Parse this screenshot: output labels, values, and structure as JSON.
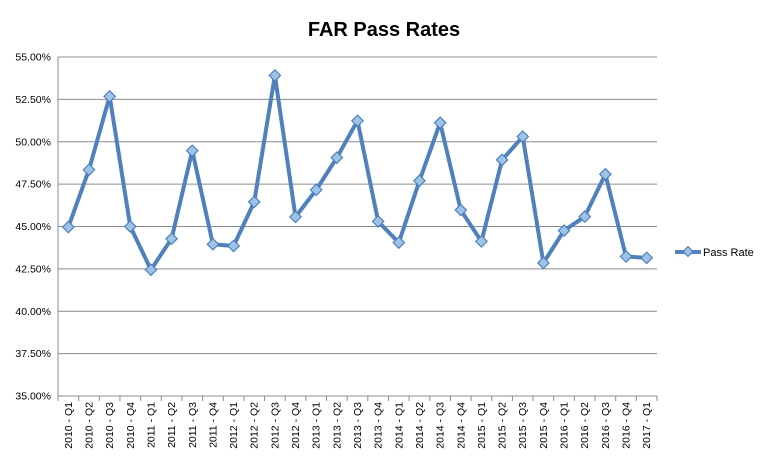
{
  "chart_data": {
    "type": "line",
    "title": "FAR Pass Rates",
    "xlabel": "",
    "ylabel": "",
    "categories": [
      "2010 - Q1",
      "2010 - Q2",
      "2010 - Q3",
      "2010 - Q4",
      "2011 - Q1",
      "2011 - Q2",
      "2011 - Q3",
      "2011 - Q4",
      "2012 - Q1",
      "2012 - Q2",
      "2012 - Q3",
      "2012 - Q4",
      "2013 - Q1",
      "2013 - Q2",
      "2013 - Q3",
      "2013 - Q4",
      "2014 - Q1",
      "2014 - Q2",
      "2014 - Q3",
      "2014 - Q4",
      "2015 - Q1",
      "2015 - Q2",
      "2015 - Q3",
      "2015 - Q4",
      "2016 - Q1",
      "2016 - Q2",
      "2016 - Q3",
      "2016 - Q4",
      "2017 - Q1"
    ],
    "series": [
      {
        "name": "Pass Rate",
        "color": "#4f81bd",
        "values": [
          0.4497,
          0.4835,
          0.5268,
          0.45,
          0.4245,
          0.4428,
          0.4947,
          0.4395,
          0.4385,
          0.4645,
          0.5391,
          0.4557,
          0.4716,
          0.4906,
          0.5124,
          0.453,
          0.4405,
          0.477,
          0.5112,
          0.4597,
          0.4412,
          0.4893,
          0.503,
          0.4285,
          0.4476,
          0.4558,
          0.4808,
          0.4323,
          0.4315
        ]
      }
    ],
    "ylim": [
      0.35,
      0.55
    ],
    "yticks": [
      "35.00%",
      "37.50%",
      "40.00%",
      "42.50%",
      "45.00%",
      "47.50%",
      "50.00%",
      "52.50%",
      "55.00%"
    ],
    "grid": true,
    "legend": "right"
  }
}
